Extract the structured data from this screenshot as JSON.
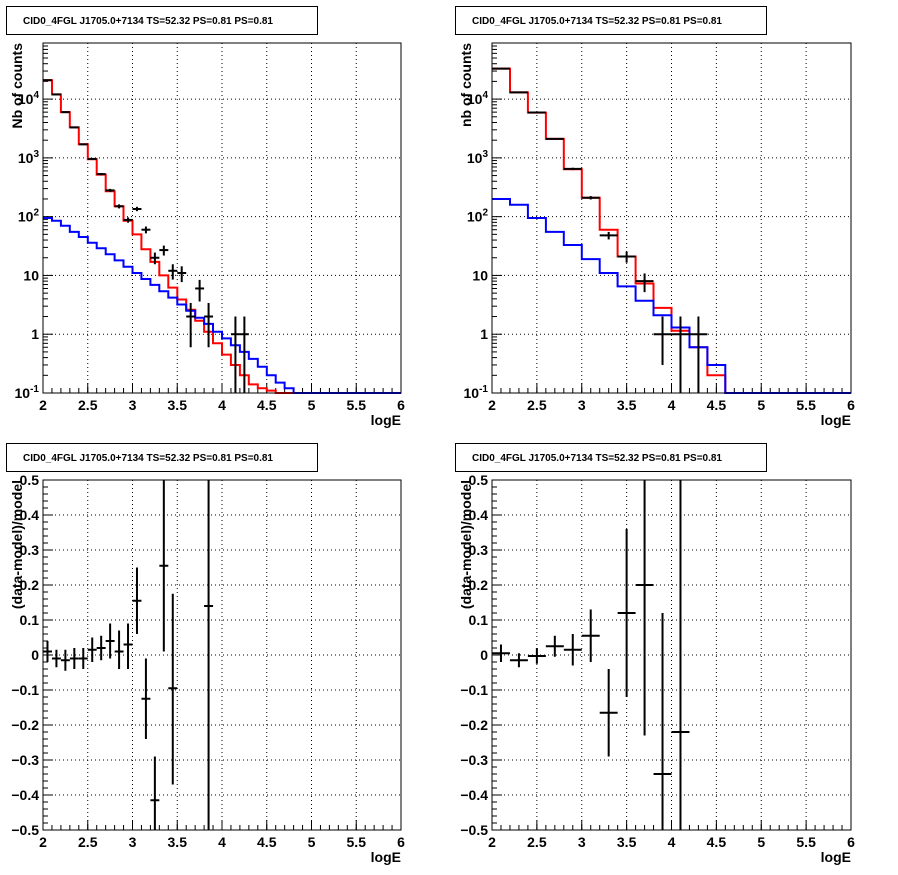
{
  "colors": {
    "data": "#000000",
    "model_total": "#ff0000",
    "model_background": "#0000ff"
  },
  "chart_data": [
    {
      "type": "line",
      "title": "CID0_4FGL J1705.0+7134 TS=52.32 PS=0.81 PS=0.81",
      "xlabel": "logE",
      "ylabel": "Nb of counts",
      "xlim": [
        2,
        6
      ],
      "ylim": [
        0.1,
        90000
      ],
      "yscale": "log",
      "grid": true,
      "x_ticks": [
        "2",
        "2.5",
        "3",
        "3.5",
        "4",
        "4.5",
        "5",
        "5.5",
        "6"
      ],
      "y_ticks": [
        "10-1",
        "1",
        "10",
        "102",
        "103",
        "104"
      ],
      "x_edges": [
        2.0,
        2.1,
        2.2,
        2.3,
        2.4,
        2.5,
        2.6,
        2.7,
        2.8,
        2.9,
        3.0,
        3.1,
        3.2,
        3.3,
        3.4,
        3.5,
        3.6,
        3.7,
        3.8,
        3.9,
        4.0,
        4.1,
        4.2,
        4.3,
        4.4,
        4.5,
        4.6,
        4.7,
        4.8,
        4.9,
        5.0,
        5.1,
        5.2,
        5.3,
        5.4,
        5.5,
        5.6,
        5.7,
        5.8,
        5.9,
        6.0
      ],
      "series": [
        {
          "name": "",
          "color": "#ff0000",
          "kind": "step",
          "values": [
            21000,
            12000,
            6000,
            3300,
            1700,
            950,
            520,
            270,
            150,
            85,
            50,
            28,
            17,
            10,
            6.2,
            3.9,
            2.6,
            1.7,
            1.1,
            0.7,
            0.45,
            0.3,
            0.2,
            0.14,
            0.12,
            0.11,
            0.1,
            0.1,
            0.1,
            0.1,
            0.1,
            0.1,
            0.1,
            0.1,
            0.1,
            0.1,
            0.1,
            0.1,
            0.1,
            0.1
          ]
        },
        {
          "name": "",
          "color": "#0000ff",
          "kind": "step",
          "values": [
            95,
            85,
            70,
            55,
            45,
            36,
            29,
            23,
            18,
            14,
            11,
            8.7,
            6.9,
            5.4,
            4.2,
            3.2,
            2.5,
            1.9,
            1.5,
            1.1,
            0.85,
            0.65,
            0.5,
            0.38,
            0.28,
            0.2,
            0.15,
            0.12,
            0.1,
            0.1,
            0.1,
            0.1,
            0.1,
            0.1,
            0.1,
            0.1,
            0.1,
            0.1,
            0.1,
            0.1
          ]
        },
        {
          "name": "",
          "color": "#000000",
          "kind": "points",
          "points": [
            {
              "x": 2.05,
              "y": 21000,
              "lo": 20850,
              "hi": 21150
            },
            {
              "x": 2.15,
              "y": 12000,
              "lo": 11900,
              "hi": 12100
            },
            {
              "x": 2.25,
              "y": 6000,
              "lo": 5920,
              "hi": 6080
            },
            {
              "x": 2.35,
              "y": 3300,
              "lo": 3240,
              "hi": 3360
            },
            {
              "x": 2.45,
              "y": 1700,
              "lo": 1660,
              "hi": 1740
            },
            {
              "x": 2.55,
              "y": 960,
              "lo": 930,
              "hi": 990
            },
            {
              "x": 2.65,
              "y": 530,
              "lo": 507,
              "hi": 553
            },
            {
              "x": 2.75,
              "y": 280,
              "lo": 263,
              "hi": 297
            },
            {
              "x": 2.85,
              "y": 150,
              "lo": 138,
              "hi": 162
            },
            {
              "x": 2.95,
              "y": 88,
              "lo": 79,
              "hi": 97
            },
            {
              "x": 3.05,
              "y": 135,
              "lo": 124,
              "hi": 147
            },
            {
              "x": 3.15,
              "y": 60,
              "lo": 52,
              "hi": 68
            },
            {
              "x": 3.25,
              "y": 20,
              "lo": 15.5,
              "hi": 24.5
            },
            {
              "x": 3.35,
              "y": 27,
              "lo": 21.8,
              "hi": 32.2
            },
            {
              "x": 3.45,
              "y": 12,
              "lo": 8.5,
              "hi": 15.5
            },
            {
              "x": 3.55,
              "y": 11,
              "lo": 7.7,
              "hi": 14.3
            },
            {
              "x": 3.65,
              "y": 2,
              "lo": 0.6,
              "hi": 3.4
            },
            {
              "x": 3.75,
              "y": 6,
              "lo": 3.6,
              "hi": 8.4
            },
            {
              "x": 3.85,
              "y": 2,
              "lo": 0.6,
              "hi": 3.4
            },
            {
              "x": 4.15,
              "y": 1,
              "lo": 0.1,
              "hi": 2
            },
            {
              "x": 4.25,
              "y": 1,
              "lo": 0.1,
              "hi": 2
            }
          ]
        }
      ]
    },
    {
      "type": "line",
      "title": "CID0_4FGL J1705.0+7134 TS=52.32 PS=0.81 PS=0.81",
      "xlabel": "logE",
      "ylabel": "nb of counts",
      "xlim": [
        2,
        6
      ],
      "ylim": [
        0.1,
        90000
      ],
      "yscale": "log",
      "grid": true,
      "x_ticks": [
        "2",
        "2.5",
        "3",
        "3.5",
        "4",
        "4.5",
        "5",
        "5.5",
        "6"
      ],
      "y_ticks": [
        "10-1",
        "1",
        "10",
        "102",
        "103",
        "104"
      ],
      "x_edges": [
        2.0,
        2.2,
        2.4,
        2.6,
        2.8,
        3.0,
        3.2,
        3.4,
        3.6,
        3.8,
        4.0,
        4.2,
        4.4,
        4.6,
        4.8,
        5.0,
        5.2,
        5.4,
        5.6,
        5.8,
        6.0
      ],
      "series": [
        {
          "name": "",
          "color": "#ff0000",
          "kind": "step",
          "values": [
            33000,
            13000,
            5900,
            2100,
            640,
            210,
            60,
            21,
            7.3,
            2.8,
            1.15,
            0.6,
            0.2,
            0.1,
            0.1,
            0.1,
            0.1,
            0.1,
            0.1,
            0.1
          ]
        },
        {
          "name": "",
          "color": "#0000ff",
          "kind": "step",
          "values": [
            200,
            160,
            95,
            55,
            33,
            19,
            11,
            6.5,
            3.7,
            2.1,
            1.3,
            0.6,
            0.3,
            0.1,
            0.1,
            0.1,
            0.1,
            0.1,
            0.1,
            0.1
          ]
        },
        {
          "name": "",
          "color": "#000000",
          "kind": "points",
          "points": [
            {
              "x": 2.1,
              "y": 33000,
              "lo": 32800,
              "hi": 33200
            },
            {
              "x": 2.3,
              "y": 13000,
              "lo": 12890,
              "hi": 13110
            },
            {
              "x": 2.5,
              "y": 5900,
              "lo": 5820,
              "hi": 5980
            },
            {
              "x": 2.7,
              "y": 2100,
              "lo": 2050,
              "hi": 2150
            },
            {
              "x": 2.9,
              "y": 650,
              "lo": 620,
              "hi": 680
            },
            {
              "x": 3.1,
              "y": 210,
              "lo": 196,
              "hi": 224
            },
            {
              "x": 3.3,
              "y": 48,
              "lo": 41,
              "hi": 55
            },
            {
              "x": 3.5,
              "y": 21,
              "lo": 16.5,
              "hi": 25.5
            },
            {
              "x": 3.7,
              "y": 8,
              "lo": 5.2,
              "hi": 10.8
            },
            {
              "x": 3.9,
              "y": 1,
              "lo": 0.3,
              "hi": 2
            },
            {
              "x": 4.1,
              "y": 1,
              "lo": 0.1,
              "hi": 2
            },
            {
              "x": 4.3,
              "y": 1,
              "lo": 0.1,
              "hi": 2
            }
          ]
        }
      ]
    },
    {
      "type": "scatter",
      "title": "CID0_4FGL J1705.0+7134 TS=52.32 PS=0.81 PS=0.81",
      "xlabel": "logE",
      "ylabel": "(data-model)/model",
      "xlim": [
        2,
        6
      ],
      "ylim": [
        -0.5,
        0.5
      ],
      "grid": true,
      "x_ticks": [
        "2",
        "2.5",
        "3",
        "3.5",
        "4",
        "4.5",
        "5",
        "5.5",
        "6"
      ],
      "y_ticks": [
        "-0.5",
        "-0.4",
        "-0.3",
        "-0.2",
        "-0.1",
        "0",
        "0.1",
        "0.2",
        "0.3",
        "0.4",
        "0.5"
      ],
      "series": [
        {
          "name": "",
          "color": "#000000",
          "kind": "points",
          "halfwidth": 0.05,
          "points": [
            {
              "x": 2.05,
              "y": 0.01,
              "lo": -0.02,
              "hi": 0.04
            },
            {
              "x": 2.15,
              "y": -0.01,
              "lo": -0.035,
              "hi": 0.015
            },
            {
              "x": 2.25,
              "y": -0.015,
              "lo": -0.045,
              "hi": 0.015
            },
            {
              "x": 2.35,
              "y": -0.01,
              "lo": -0.04,
              "hi": 0.02
            },
            {
              "x": 2.45,
              "y": -0.01,
              "lo": -0.04,
              "hi": 0.02
            },
            {
              "x": 2.55,
              "y": 0.015,
              "lo": -0.02,
              "hi": 0.05
            },
            {
              "x": 2.65,
              "y": 0.02,
              "lo": -0.015,
              "hi": 0.055
            },
            {
              "x": 2.75,
              "y": 0.04,
              "lo": -0.01,
              "hi": 0.09
            },
            {
              "x": 2.85,
              "y": 0.01,
              "lo": -0.04,
              "hi": 0.07
            },
            {
              "x": 2.95,
              "y": 0.03,
              "lo": -0.04,
              "hi": 0.09
            },
            {
              "x": 3.05,
              "y": 0.155,
              "lo": 0.06,
              "hi": 0.25
            },
            {
              "x": 3.15,
              "y": -0.125,
              "lo": -0.24,
              "hi": -0.01
            },
            {
              "x": 3.25,
              "y": -0.415,
              "lo": -0.5,
              "hi": -0.29
            },
            {
              "x": 3.35,
              "y": 0.255,
              "lo": 0.01,
              "hi": 0.5
            },
            {
              "x": 3.45,
              "y": -0.095,
              "lo": -0.37,
              "hi": 0.175
            },
            {
              "x": 3.85,
              "y": 0.14,
              "lo": -0.5,
              "hi": 0.5
            }
          ]
        }
      ]
    },
    {
      "type": "scatter",
      "title": "CID0_4FGL J1705.0+7134 TS=52.32 PS=0.81 PS=0.81",
      "xlabel": "logE",
      "ylabel": "(data-model)/model",
      "xlim": [
        2,
        6
      ],
      "ylim": [
        -0.5,
        0.5
      ],
      "grid": true,
      "x_ticks": [
        "2",
        "2.5",
        "3",
        "3.5",
        "4",
        "4.5",
        "5",
        "5.5",
        "6"
      ],
      "y_ticks": [
        "-0.5",
        "-0.4",
        "-0.3",
        "-0.2",
        "-0.1",
        "0",
        "0.1",
        "0.2",
        "0.3",
        "0.4",
        "0.5"
      ],
      "series": [
        {
          "name": "",
          "color": "#000000",
          "kind": "points",
          "halfwidth": 0.1,
          "points": [
            {
              "x": 2.1,
              "y": 0.005,
              "lo": -0.02,
              "hi": 0.03
            },
            {
              "x": 2.3,
              "y": -0.015,
              "lo": -0.035,
              "hi": 0.005
            },
            {
              "x": 2.5,
              "y": -0.003,
              "lo": -0.025,
              "hi": 0.02
            },
            {
              "x": 2.7,
              "y": 0.025,
              "lo": -0.005,
              "hi": 0.055
            },
            {
              "x": 2.9,
              "y": 0.015,
              "lo": -0.03,
              "hi": 0.06
            },
            {
              "x": 3.1,
              "y": 0.055,
              "lo": -0.02,
              "hi": 0.13
            },
            {
              "x": 3.3,
              "y": -0.165,
              "lo": -0.29,
              "hi": -0.04
            },
            {
              "x": 3.5,
              "y": 0.12,
              "lo": -0.12,
              "hi": 0.36
            },
            {
              "x": 3.7,
              "y": 0.2,
              "lo": -0.23,
              "hi": 0.5
            },
            {
              "x": 3.9,
              "y": -0.34,
              "lo": -0.5,
              "hi": 0.12
            },
            {
              "x": 4.1,
              "y": -0.22,
              "lo": -0.5,
              "hi": 0.5
            }
          ]
        }
      ]
    }
  ]
}
